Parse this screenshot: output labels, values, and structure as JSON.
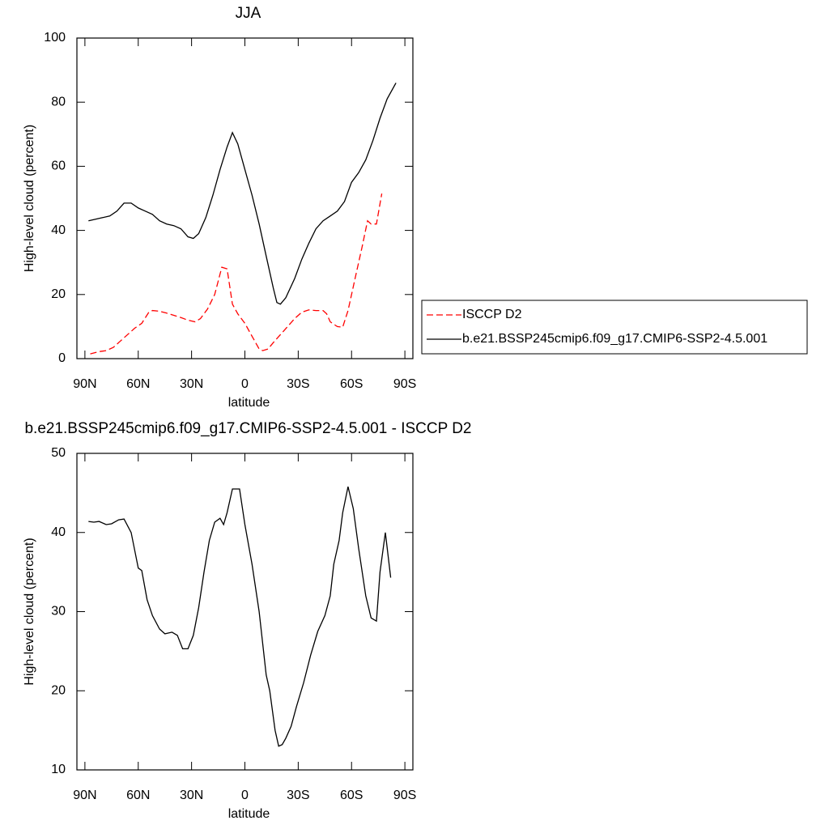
{
  "chart_data": [
    {
      "type": "line",
      "title": "JJA",
      "xlabel": "latitude",
      "ylabel": "High-level cloud (percent)",
      "xlim": [
        94.5,
        -94.5
      ],
      "ylim": [
        0,
        100
      ],
      "xticks": [
        {
          "value": 90,
          "label": "90N"
        },
        {
          "value": 60,
          "label": "60N"
        },
        {
          "value": 30,
          "label": "30N"
        },
        0,
        {
          "value": -30,
          "label": "30S"
        },
        {
          "value": -60,
          "label": "60S"
        },
        {
          "value": -90,
          "label": "90S"
        }
      ],
      "yticks": [
        0,
        20,
        40,
        60,
        80,
        100
      ],
      "legend": "right",
      "series": [
        {
          "name": "ISCCP D2",
          "color": "#ff0000",
          "linestyle": "dashed",
          "x": [
            87,
            82,
            78,
            74,
            70,
            66,
            62,
            58,
            54,
            52,
            48,
            44,
            40,
            36,
            32,
            28,
            25,
            21,
            17,
            13,
            10,
            7,
            4,
            0,
            -4,
            -8,
            -10,
            -13,
            -16,
            -20,
            -24,
            -28,
            -32,
            -36,
            -40,
            -44,
            -46,
            -48,
            -52,
            -55,
            -58,
            -62,
            -66,
            -69,
            -71,
            -74,
            -77
          ],
          "values": [
            1.5,
            2.2,
            2.5,
            3.5,
            5.5,
            7.5,
            9.5,
            11,
            14.5,
            15,
            14.8,
            14.2,
            13.5,
            12.8,
            12,
            11.5,
            12.5,
            15.5,
            20,
            28.5,
            28,
            17,
            14,
            11,
            7,
            3,
            2.5,
            3,
            5,
            7.5,
            10,
            12.5,
            14.5,
            15.2,
            15,
            15,
            14,
            11.5,
            10,
            9.8,
            15,
            25,
            35,
            43,
            42,
            42,
            51.5
          ]
        },
        {
          "name": "b.e21.BSSP245cmip6.f09_g17.CMIP6-SSP2-4.5.001",
          "color": "#000000",
          "linestyle": "solid",
          "x": [
            88,
            84,
            80,
            76,
            72,
            68,
            64,
            60,
            56,
            52,
            48,
            44,
            40,
            36,
            32,
            29,
            26,
            22,
            18,
            14,
            10,
            7,
            4,
            0,
            -4,
            -8,
            -12,
            -16,
            -18,
            -20,
            -23,
            -28,
            -32,
            -36,
            -40,
            -44,
            -48,
            -52,
            -56,
            -60,
            -64,
            -68,
            -72,
            -76,
            -80,
            -85
          ],
          "values": [
            43,
            43.5,
            44,
            44.5,
            46,
            48.5,
            48.5,
            47,
            46,
            45,
            43,
            42,
            41.5,
            40.5,
            38,
            37.5,
            39,
            44,
            51,
            59,
            66,
            70.5,
            67,
            59,
            51,
            42,
            32,
            22,
            17.5,
            17,
            19,
            25,
            31,
            36,
            40.5,
            43,
            44.5,
            46,
            49,
            55,
            58,
            62,
            68,
            75,
            81,
            86
          ]
        }
      ]
    },
    {
      "type": "line",
      "title": "b.e21.BSSP245cmip6.f09_g17.CMIP6-SSP2-4.5.001 - ISCCP D2",
      "xlabel": "latitude",
      "ylabel": "High-level cloud (percent)",
      "xlim": [
        94.5,
        -94.5
      ],
      "ylim": [
        10,
        50
      ],
      "xticks": [
        {
          "value": 90,
          "label": "90N"
        },
        {
          "value": 60,
          "label": "60N"
        },
        {
          "value": 30,
          "label": "30N"
        },
        0,
        {
          "value": -30,
          "label": "30S"
        },
        {
          "value": -60,
          "label": "60S"
        },
        {
          "value": -90,
          "label": "90S"
        }
      ],
      "yticks": [
        10,
        20,
        30,
        40,
        50
      ],
      "series": [
        {
          "color": "#000000",
          "linestyle": "solid",
          "x": [
            88,
            85,
            82,
            78,
            75,
            71,
            68,
            64,
            60,
            58,
            55,
            52,
            48,
            45,
            41,
            38,
            35,
            32,
            29,
            26,
            23,
            20,
            17,
            14,
            12,
            10,
            7,
            3,
            0,
            -4,
            -8,
            -12,
            -14,
            -17,
            -19,
            -21,
            -23,
            -26,
            -29,
            -33,
            -37,
            -41,
            -45,
            -48,
            -50,
            -53,
            -55,
            -58,
            -61,
            -64,
            -68,
            -71,
            -74,
            -76,
            -79,
            -82
          ],
          "values": [
            41.4,
            41.3,
            41.4,
            41,
            41.1,
            41.6,
            41.7,
            40,
            35.5,
            35.2,
            31.5,
            29.5,
            27.8,
            27.2,
            27.4,
            27,
            25.3,
            25.3,
            27,
            30.5,
            35,
            39,
            41.3,
            41.8,
            41,
            42.5,
            45.5,
            45.5,
            41,
            36,
            30,
            22,
            20,
            15,
            13,
            13.2,
            14,
            15.5,
            18,
            21,
            24.5,
            27.5,
            29.5,
            32,
            36,
            39,
            42.5,
            45.8,
            43,
            38,
            32,
            29.2,
            28.8,
            35,
            40,
            34.3
          ]
        }
      ]
    }
  ]
}
